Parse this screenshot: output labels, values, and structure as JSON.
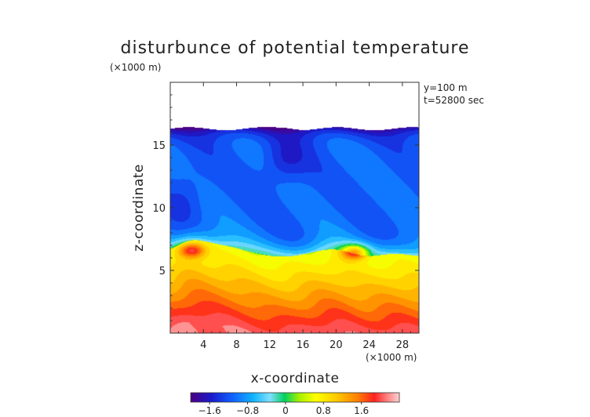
{
  "chart_data": {
    "type": "heatmap",
    "title": "disturbunce of potential temperature",
    "scale_top": "(×1000 m)",
    "scale_bottom": "(×1000 m)",
    "info_line1": "y=100 m",
    "info_line2": "t=52800 sec",
    "xlabel": "x-coordinate",
    "ylabel": "z-coordinate",
    "xlim": [
      0,
      30
    ],
    "ylim": [
      0,
      20
    ],
    "xticks": [
      "4",
      "8",
      "12",
      "16",
      "20",
      "24",
      "28"
    ],
    "xtick_values": [
      4,
      8,
      12,
      16,
      20,
      24,
      28
    ],
    "yticks": [
      "5",
      "10",
      "15"
    ],
    "ytick_values": [
      5,
      10,
      15
    ],
    "colorbar": {
      "range": [
        -2,
        2.4
      ],
      "tick_labels": [
        "−1.6",
        "−0.8",
        "0",
        "0.8",
        "1.6"
      ],
      "tick_values": [
        -1.6,
        -0.8,
        0,
        0.8,
        1.6
      ]
    },
    "domain_top": 16.3,
    "field_description": "negative perturbation aloft (about -1.8 near the domain top at 16 km, about -1.2 between 8 and 15 km), transition through zero near 6-7 km with positive anomalies near x=2 and x=22, positive values increasing to about +2 near the ground"
  }
}
